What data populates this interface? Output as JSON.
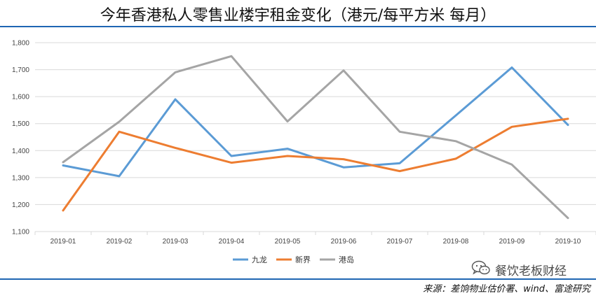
{
  "title": "今年香港私人零售业楼宇租金变化（港元/每平方米 每月）",
  "source": "来源：差饷物业估价署、wind、富途研究",
  "watermark": "餐饮老板财经",
  "icon": "wechat-icon",
  "colors": {
    "rule": "#1f66b3",
    "grid": "#d9d9d9",
    "九龙": "#5b9bd5",
    "新界": "#ed7d31",
    "港岛": "#a5a5a5"
  },
  "chart_data": {
    "type": "line",
    "x": [
      "2019-01",
      "2019-02",
      "2019-03",
      "2019-04",
      "2019-05",
      "2019-06",
      "2019-07",
      "2019-08",
      "2019-09",
      "2019-10"
    ],
    "ylim": [
      1100,
      1800
    ],
    "yticks": [
      1100,
      1200,
      1300,
      1400,
      1500,
      1600,
      1700,
      1800
    ],
    "ytick_labels": [
      "1,100",
      "1,200",
      "1,300",
      "1,400",
      "1,500",
      "1,600",
      "1,700",
      "1,800"
    ],
    "grid": true,
    "legend": "bottom",
    "series": [
      {
        "name": "九龙",
        "color": "#5b9bd5",
        "values": [
          1345,
          1305,
          1590,
          1380,
          1407,
          1338,
          1353,
          1530,
          1708,
          1495
        ]
      },
      {
        "name": "新界",
        "color": "#ed7d31",
        "values": [
          1178,
          1470,
          1410,
          1355,
          1380,
          1368,
          1324,
          1370,
          1488,
          1518
        ]
      },
      {
        "name": "港岛",
        "color": "#a5a5a5",
        "values": [
          1357,
          1507,
          1690,
          1750,
          1508,
          1697,
          1470,
          1435,
          1348,
          1150
        ]
      }
    ]
  }
}
